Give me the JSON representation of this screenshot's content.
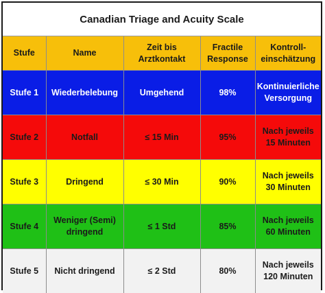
{
  "title": "Canadian Triage and Acuity Scale",
  "columns": [
    "Stufe",
    "Name",
    "Zeit bis\nArztkontakt",
    "Fractile\nResponse",
    "Kontroll-\neinschätzung"
  ],
  "rows": [
    {
      "stufe": "Stufe 1",
      "name": "Wiederbelebung",
      "zeit": "Umgehend",
      "fractile": "98%",
      "kontrolle": "Kontinuierliche\nVersorgung"
    },
    {
      "stufe": "Stufe 2",
      "name": "Notfall",
      "zeit": "≤ 15 Min",
      "fractile": "95%",
      "kontrolle": "Nach jeweils\n15 Minuten"
    },
    {
      "stufe": "Stufe 3",
      "name": "Dringend",
      "zeit": "≤ 30 Min",
      "fractile": "90%",
      "kontrolle": "Nach jeweils\n30 Minuten"
    },
    {
      "stufe": "Stufe 4",
      "name": "Weniger (Semi)\ndringend",
      "zeit": "≤ 1 Std",
      "fractile": "85%",
      "kontrolle": "Nach jeweils\n60 Minuten"
    },
    {
      "stufe": "Stufe 5",
      "name": "Nicht dringend",
      "zeit": "≤ 2 Std",
      "fractile": "80%",
      "kontrolle": "Nach jeweils\n120 Minuten"
    }
  ],
  "colors": {
    "header": "#f7bf0a",
    "stufe_1": "#0a1de6",
    "stufe_2": "#f50a0a",
    "stufe_3": "#ffff00",
    "stufe_4": "#1fc016",
    "stufe_5": "#f2f2f2"
  }
}
